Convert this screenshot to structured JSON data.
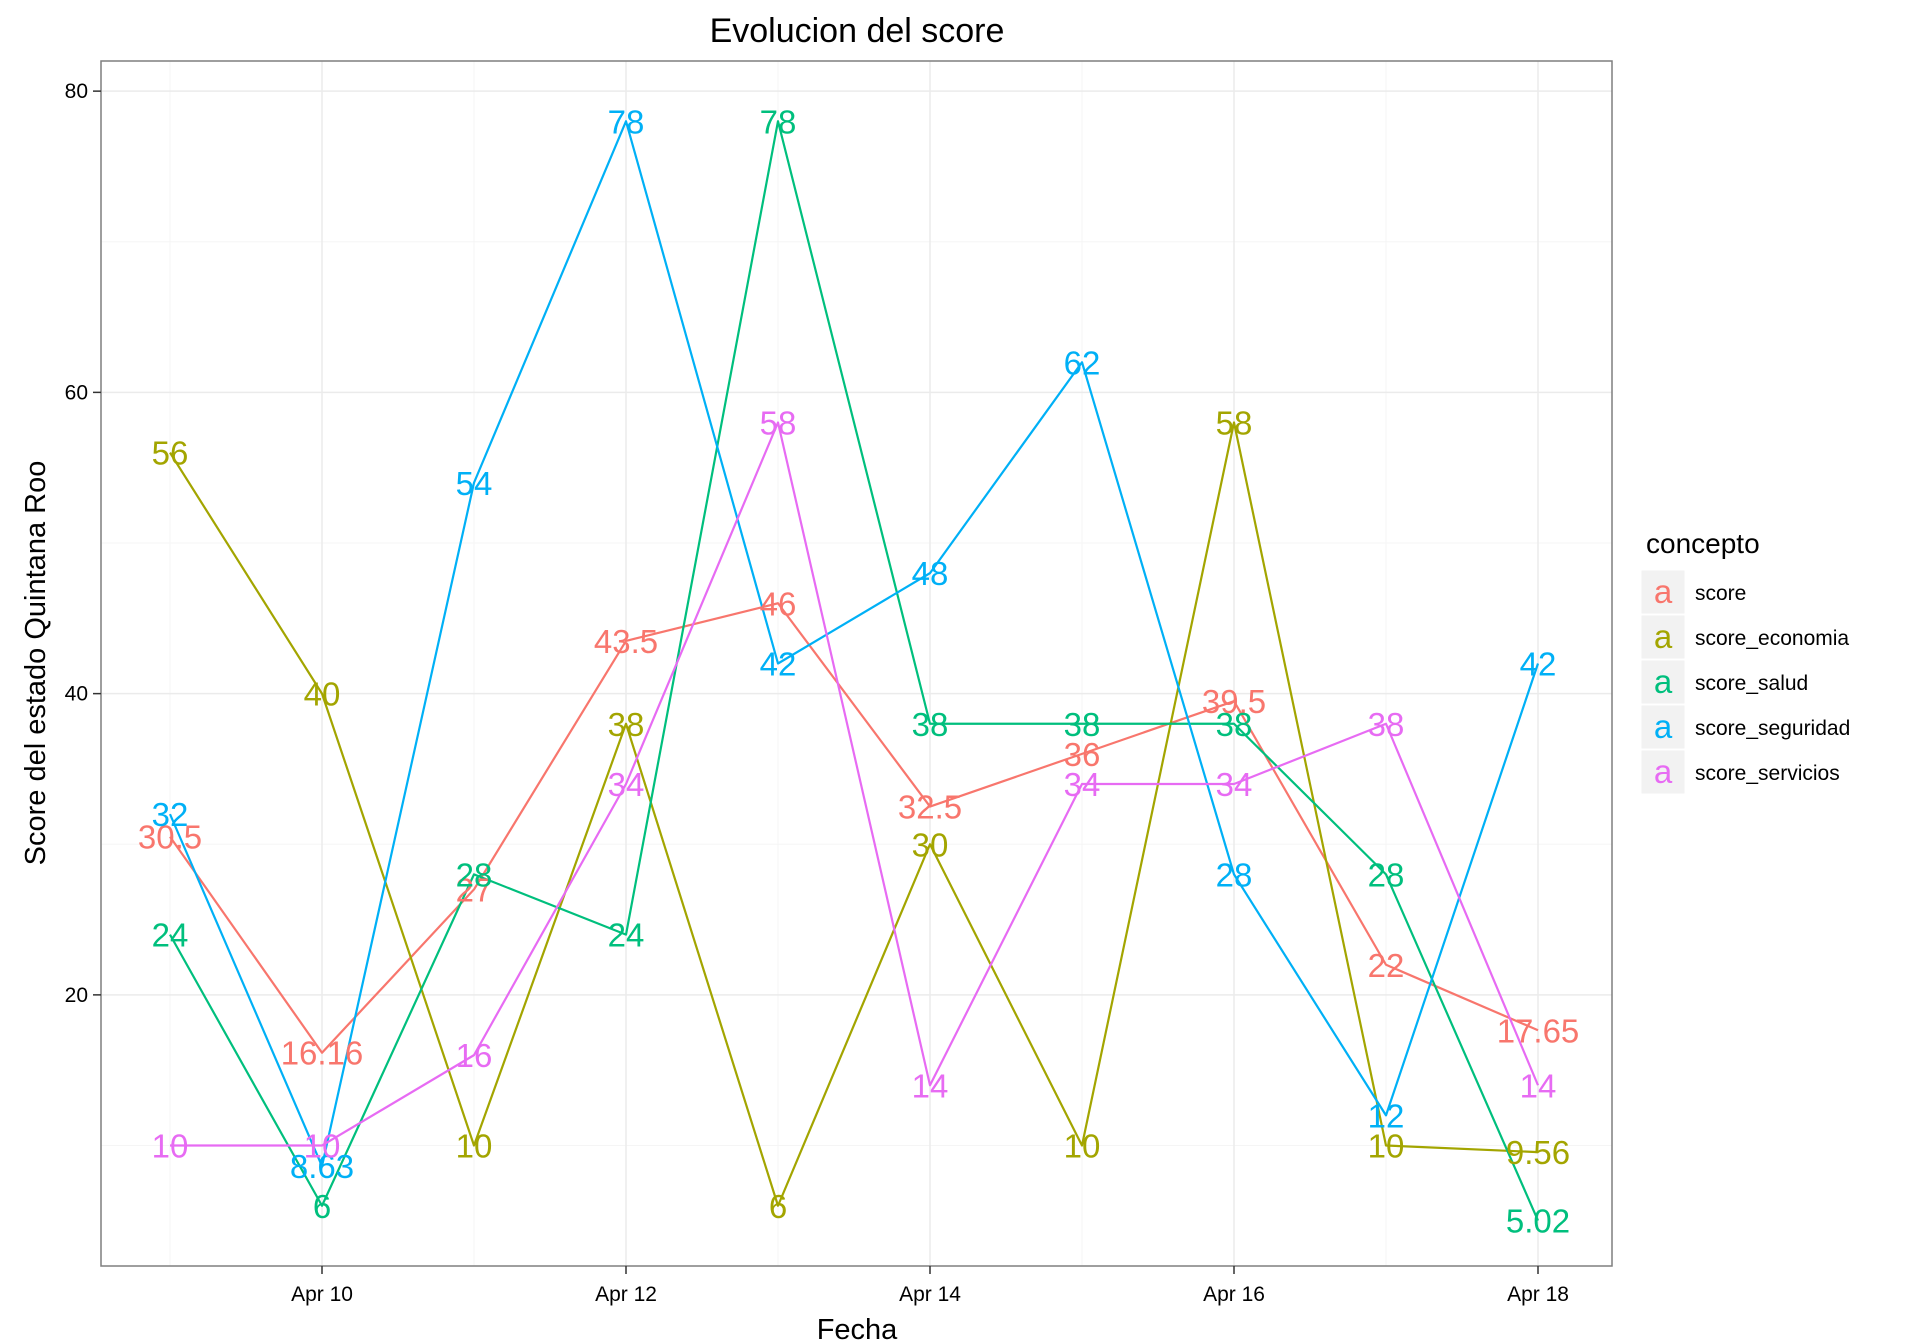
{
  "chart_data": {
    "type": "line",
    "title": "Evolucion del score",
    "xlabel": "Fecha",
    "ylabel": "Score del estado  Quintana Roo",
    "x": [
      "Apr 09",
      "Apr 10",
      "Apr 11",
      "Apr 12",
      "Apr 13",
      "Apr 14",
      "Apr 15",
      "Apr 16",
      "Apr 17",
      "Apr 18"
    ],
    "x_ticks": [
      "Apr 10",
      "Apr 12",
      "Apr 14",
      "Apr 16",
      "Apr 18"
    ],
    "y_ticks": [
      20,
      40,
      60,
      80
    ],
    "ylim": [
      2,
      82
    ],
    "grid": true,
    "legend": {
      "title": "concepto",
      "position": "right",
      "key_glyph": "a"
    },
    "series": [
      {
        "name": "score",
        "color": "#F8766D",
        "values": [
          30.5,
          16.16,
          27,
          43.5,
          46,
          32.5,
          36,
          39.5,
          22,
          17.65
        ],
        "labels": [
          "30.5",
          "16.16",
          "27",
          "43.5",
          "46",
          "32.5",
          "36",
          "39.5",
          "22",
          "17.65"
        ]
      },
      {
        "name": "score_economia",
        "color": "#A3A500",
        "values": [
          56,
          40,
          10,
          38,
          6,
          30,
          10,
          58,
          10,
          9.56
        ],
        "labels": [
          "56",
          "40",
          "10",
          "38",
          "6",
          "30",
          "10",
          "58",
          "10",
          "9.56"
        ]
      },
      {
        "name": "score_salud",
        "color": "#00BF7D",
        "values": [
          24,
          6,
          28,
          24,
          78,
          38,
          38,
          38,
          28,
          5.02
        ],
        "labels": [
          "24",
          "6",
          "28",
          "24",
          "78",
          "38",
          "38",
          "38",
          "28",
          "5.02"
        ]
      },
      {
        "name": "score_seguridad",
        "color": "#00B0F6",
        "values": [
          32,
          8.63,
          54,
          78,
          42,
          48,
          62,
          28,
          12,
          42
        ],
        "labels": [
          "32",
          "8.63",
          "54",
          "78",
          "42",
          "48",
          "62",
          "28",
          "12",
          "42"
        ]
      },
      {
        "name": "score_servicios",
        "color": "#E76BF3",
        "values": [
          10,
          10,
          16,
          34,
          58,
          14,
          34,
          34,
          38,
          14
        ],
        "labels": [
          "10",
          "10",
          "16",
          "34",
          "58",
          "14",
          "34",
          "34",
          "38",
          "14"
        ]
      }
    ]
  }
}
